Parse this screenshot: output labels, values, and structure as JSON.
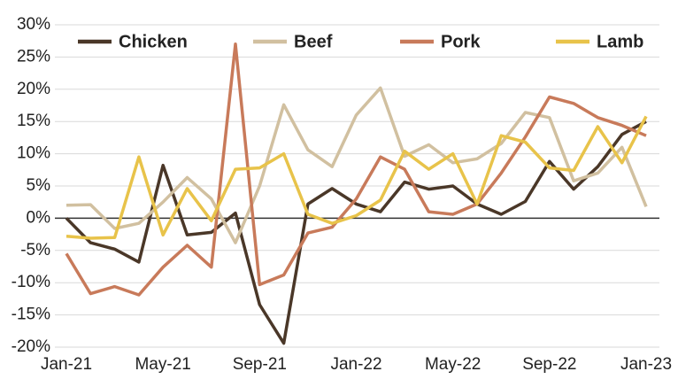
{
  "chart_data": {
    "type": "line",
    "categories": [
      "Jan-21",
      null,
      null,
      null,
      "May-21",
      null,
      null,
      null,
      "Sep-21",
      null,
      null,
      null,
      "Jan-22",
      null,
      null,
      null,
      "May-22",
      null,
      null,
      null,
      "Sep-22",
      null,
      null,
      null,
      "Jan-23"
    ],
    "series": [
      {
        "name": "Chicken",
        "color": "#4a3728",
        "values": [
          0,
          -3.8,
          -4.8,
          -6.8,
          8.2,
          -2.6,
          -2.2,
          0.8,
          -13.4,
          -19.4,
          2.2,
          4.6,
          2.2,
          1.0,
          5.6,
          4.5,
          5.0,
          2.2,
          0.6,
          2.6,
          8.8,
          4.5,
          8.0,
          13.0,
          15.0
        ]
      },
      {
        "name": "Beef",
        "color": "#d1c0a0",
        "values": [
          2.0,
          2.1,
          -1.6,
          -0.8,
          2.5,
          6.3,
          3.0,
          -3.8,
          5.0,
          17.6,
          10.6,
          8.0,
          16.0,
          20.2,
          9.6,
          11.4,
          8.6,
          9.2,
          11.6,
          16.4,
          15.6,
          5.8,
          7.0,
          11.0,
          1.8
        ]
      },
      {
        "name": "Pork",
        "color": "#c87a5a",
        "values": [
          -5.5,
          -11.7,
          -10.6,
          -11.9,
          -7.6,
          -4.2,
          -7.6,
          27.0,
          -10.3,
          -8.8,
          -2.3,
          -1.4,
          3.0,
          9.5,
          7.6,
          1.0,
          0.6,
          2.2,
          7.0,
          12.6,
          18.8,
          17.8,
          15.6,
          14.4,
          12.8
        ]
      },
      {
        "name": "Lamb",
        "color": "#e8c34a",
        "values": [
          -2.8,
          -3.1,
          -3.0,
          9.5,
          -2.6,
          4.6,
          -0.4,
          7.6,
          7.8,
          10.0,
          0.6,
          -0.8,
          0.4,
          2.8,
          10.4,
          7.6,
          10.0,
          2.2,
          12.8,
          11.8,
          7.8,
          7.4,
          14.2,
          8.6,
          15.8
        ]
      }
    ],
    "ylim": [
      -20,
      30
    ],
    "yticks": [
      {
        "value": -20,
        "label": "-20%"
      },
      {
        "value": -15,
        "label": "-15%"
      },
      {
        "value": -10,
        "label": "-10%"
      },
      {
        "value": -5,
        "label": "-5%"
      },
      {
        "value": 0,
        "label": "0%"
      },
      {
        "value": 5,
        "label": "5%"
      },
      {
        "value": 10,
        "label": "10%"
      },
      {
        "value": 15,
        "label": "15%"
      },
      {
        "value": 20,
        "label": "20%"
      },
      {
        "value": 25,
        "label": "25%"
      },
      {
        "value": 30,
        "label": "30%"
      }
    ],
    "grid": true,
    "legend": "top"
  }
}
